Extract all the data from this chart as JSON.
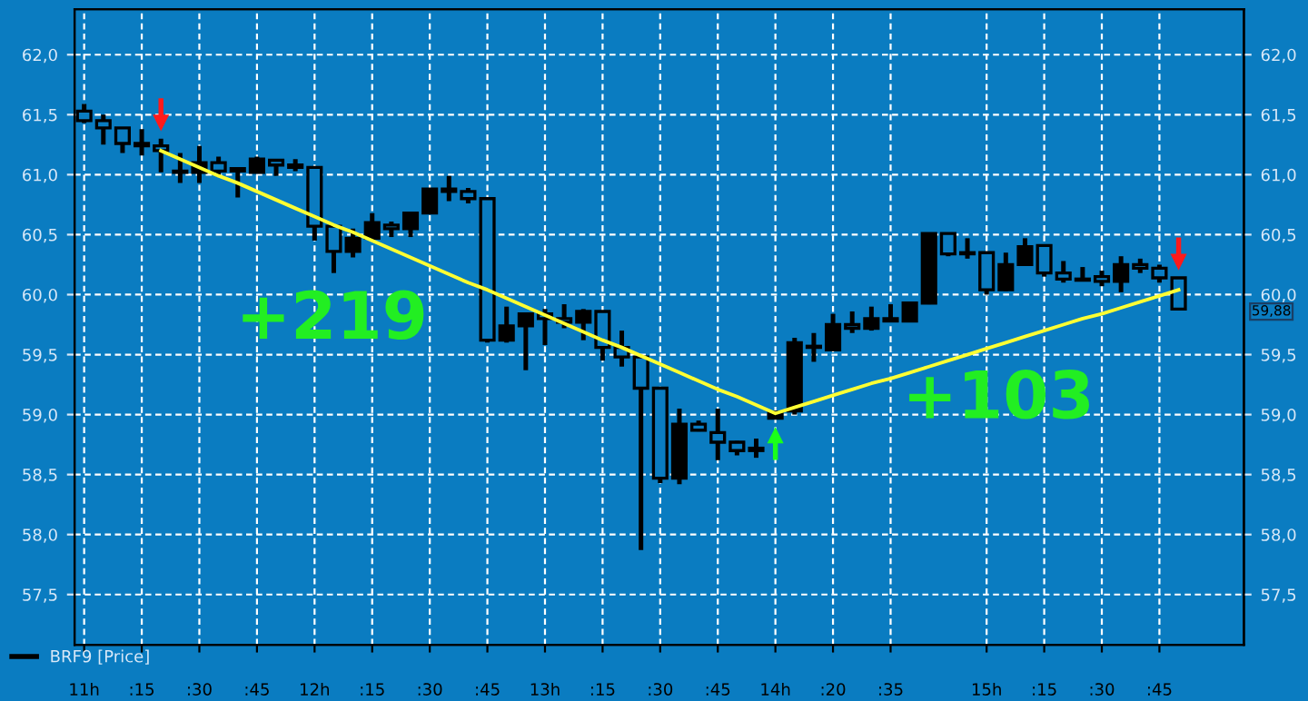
{
  "chart_data": {
    "type": "candlestick",
    "categories": [
      "11h",
      null,
      null,
      ":15",
      null,
      null,
      ":30",
      null,
      null,
      ":45",
      null,
      null,
      "12h",
      null,
      null,
      ":15",
      null,
      null,
      ":30",
      null,
      null,
      ":45",
      null,
      null,
      "13h",
      null,
      null,
      ":15",
      null,
      null,
      ":30",
      null,
      null,
      ":45",
      null,
      null,
      "14h",
      null,
      null,
      ":20",
      null,
      null,
      ":35",
      null,
      null,
      null,
      null,
      "15h",
      null,
      null,
      ":15",
      null,
      null,
      ":30",
      null,
      null,
      ":45",
      null
    ],
    "series": [
      {
        "name": "BRF9 [Price]",
        "color": "#000000",
        "ohlc": [
          [
            61.53,
            61.59,
            61.43,
            61.45
          ],
          [
            61.45,
            61.5,
            61.25,
            61.39
          ],
          [
            61.39,
            61.39,
            61.18,
            61.26
          ],
          [
            61.26,
            61.38,
            61.16,
            61.24
          ],
          [
            61.24,
            61.3,
            61.02,
            61.2
          ],
          [
            61.03,
            61.18,
            60.93,
            61.02
          ],
          [
            61.02,
            61.24,
            60.93,
            61.1
          ],
          [
            61.1,
            61.15,
            60.98,
            61.03
          ],
          [
            61.03,
            61.06,
            60.81,
            61.05
          ],
          [
            61.02,
            61.15,
            61.02,
            61.13
          ],
          [
            61.12,
            61.13,
            60.99,
            61.08
          ],
          [
            61.08,
            61.13,
            61.03,
            61.06
          ],
          [
            61.06,
            61.06,
            60.45,
            60.57
          ],
          [
            60.57,
            60.57,
            60.18,
            60.36
          ],
          [
            60.36,
            60.55,
            60.31,
            60.47
          ],
          [
            60.47,
            60.68,
            60.47,
            60.6
          ],
          [
            60.58,
            60.61,
            60.48,
            60.55
          ],
          [
            60.55,
            60.69,
            60.48,
            60.68
          ],
          [
            60.68,
            60.89,
            60.68,
            60.88
          ],
          [
            60.88,
            60.99,
            60.78,
            60.86
          ],
          [
            60.86,
            60.89,
            60.76,
            60.8
          ],
          [
            60.8,
            60.8,
            59.6,
            59.62
          ],
          [
            59.62,
            59.9,
            59.6,
            59.74
          ],
          [
            59.74,
            59.85,
            59.37,
            59.84
          ],
          [
            59.84,
            59.88,
            59.58,
            59.8
          ],
          [
            59.8,
            59.92,
            59.72,
            59.77
          ],
          [
            59.77,
            59.88,
            59.62,
            59.86
          ],
          [
            59.86,
            59.86,
            59.45,
            59.56
          ],
          [
            59.56,
            59.7,
            59.4,
            59.48
          ],
          [
            59.48,
            59.48,
            57.87,
            59.22
          ],
          [
            59.22,
            59.22,
            58.43,
            58.47
          ],
          [
            58.47,
            59.05,
            58.42,
            58.92
          ],
          [
            58.92,
            58.95,
            58.86,
            58.87
          ],
          [
            58.85,
            59.05,
            58.62,
            58.77
          ],
          [
            58.77,
            58.78,
            58.66,
            58.7
          ],
          [
            58.7,
            58.8,
            58.64,
            58.72
          ],
          [
            58.97,
            59.03,
            58.96,
            59.02
          ],
          [
            59.03,
            59.64,
            59.0,
            59.6
          ],
          [
            59.57,
            59.68,
            59.44,
            59.56
          ],
          [
            59.54,
            59.84,
            59.54,
            59.75
          ],
          [
            59.75,
            59.86,
            59.68,
            59.72
          ],
          [
            59.72,
            59.9,
            59.7,
            59.8
          ],
          [
            59.8,
            59.92,
            59.77,
            59.78
          ],
          [
            59.78,
            59.94,
            59.78,
            59.93
          ],
          [
            59.93,
            60.51,
            59.92,
            60.51
          ],
          [
            60.51,
            60.51,
            60.32,
            60.34
          ],
          [
            60.35,
            60.47,
            60.3,
            60.34
          ],
          [
            60.35,
            60.35,
            60.0,
            60.04
          ],
          [
            60.04,
            60.35,
            60.03,
            60.25
          ],
          [
            60.25,
            60.47,
            60.25,
            60.4
          ],
          [
            60.41,
            60.41,
            60.15,
            60.18
          ],
          [
            60.18,
            60.28,
            60.1,
            60.13
          ],
          [
            60.12,
            60.23,
            60.12,
            60.13
          ],
          [
            60.15,
            60.2,
            60.07,
            60.11
          ],
          [
            60.11,
            60.32,
            60.02,
            60.25
          ],
          [
            60.25,
            60.3,
            60.18,
            60.22
          ],
          [
            60.22,
            60.25,
            60.1,
            60.14
          ],
          [
            60.14,
            60.14,
            59.88,
            59.88
          ]
        ]
      },
      {
        "type": "line",
        "color": "#ffff33",
        "values": [
          null,
          null,
          null,
          null,
          61.2,
          61.13,
          61.06,
          60.99,
          60.93,
          60.86,
          60.79,
          60.72,
          60.65,
          60.58,
          60.52,
          60.45,
          60.38,
          60.31,
          60.24,
          60.17,
          60.1,
          60.04,
          59.97,
          59.9,
          59.83,
          59.76,
          59.69,
          59.62,
          59.56,
          59.49,
          59.42,
          59.35,
          59.28,
          59.21,
          59.15,
          59.08,
          59.01,
          59.06,
          59.11,
          59.16,
          59.21,
          59.26,
          59.3,
          59.35,
          59.4,
          59.45,
          59.5,
          59.55,
          59.6,
          59.65,
          59.7,
          59.75,
          59.8,
          59.84,
          59.89,
          59.94,
          59.99,
          60.04
        ]
      }
    ],
    "annotations": [
      "+219",
      "+103",
      "59,88"
    ],
    "ylim": [
      57.08,
      62.38
    ],
    "yticks": [
      {
        "value": 57.5,
        "label": "57,5"
      },
      {
        "value": 58,
        "label": "58,0"
      },
      {
        "value": 58.5,
        "label": "58,5"
      },
      {
        "value": 59,
        "label": "59,0"
      },
      {
        "value": 59.5,
        "label": "59,5"
      },
      {
        "value": 60,
        "label": "60,0"
      },
      {
        "value": 60.5,
        "label": "60,5"
      },
      {
        "value": 61,
        "label": "61,0"
      },
      {
        "value": 61.5,
        "label": "61,5"
      },
      {
        "value": 62,
        "label": "62,0"
      }
    ],
    "y2lim": [
      57.08,
      62.38
    ],
    "y2ticks": [
      {
        "value": 57.5,
        "label": "57,5"
      },
      {
        "value": 58,
        "label": "58,0"
      },
      {
        "value": 58.5,
        "label": "58,5"
      },
      {
        "value": 59,
        "label": "59,0"
      },
      {
        "value": 59.5,
        "label": "59,5"
      },
      {
        "value": 60,
        "label": "60,0"
      },
      {
        "value": 60.5,
        "label": "60,5"
      },
      {
        "value": 61,
        "label": "61,0"
      },
      {
        "value": 61.5,
        "label": "61,5"
      },
      {
        "value": 62,
        "label": "62,0"
      }
    ],
    "grid": true,
    "legend": "bottom left"
  }
}
